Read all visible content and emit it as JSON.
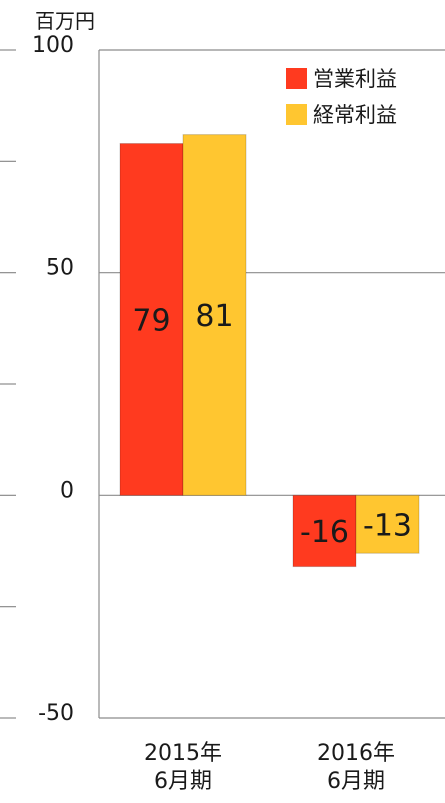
{
  "chart_data": {
    "type": "bar",
    "unit_label": "百万円",
    "categories": [
      "2015年\n6月期",
      "2016年\n6月期"
    ],
    "series": [
      {
        "name": "営業利益",
        "values": [
          79,
          -16
        ],
        "color": "#ff3a1f"
      },
      {
        "name": "経常利益",
        "values": [
          81,
          -13
        ],
        "color": "#ffc630"
      }
    ],
    "ylim": [
      -50,
      100
    ],
    "yticks": [
      -50,
      0,
      50,
      100
    ],
    "grid": true,
    "legend": "top-right"
  }
}
